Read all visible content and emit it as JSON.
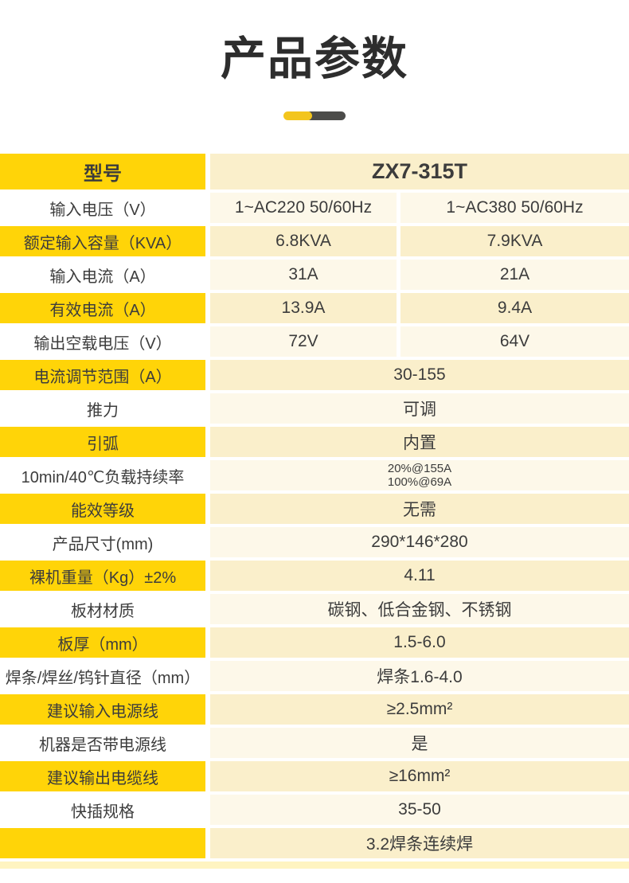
{
  "title": "产品参数",
  "table": {
    "header": {
      "label": "型号",
      "value": "ZX7-315T"
    },
    "rows": [
      {
        "label": "输入电压（V）",
        "highlight": false,
        "values": [
          "1~AC220 50/60Hz",
          "1~AC380 50/60Hz"
        ]
      },
      {
        "label": "额定输入容量（KVA）",
        "highlight": true,
        "values": [
          "6.8KVA",
          "7.9KVA"
        ]
      },
      {
        "label": "输入电流（A）",
        "highlight": false,
        "values": [
          "31A",
          "21A"
        ]
      },
      {
        "label": "有效电流（A）",
        "highlight": true,
        "values": [
          "13.9A",
          "9.4A"
        ]
      },
      {
        "label": "输出空载电压（V）",
        "highlight": false,
        "values": [
          "72V",
          "64V"
        ]
      },
      {
        "label": "电流调节范围（A）",
        "highlight": true,
        "values": [
          "30-155"
        ]
      },
      {
        "label": "推力",
        "highlight": false,
        "values": [
          "可调"
        ]
      },
      {
        "label": "引弧",
        "highlight": true,
        "values": [
          "内置"
        ]
      },
      {
        "label": "10min/40℃负载持续率",
        "highlight": false,
        "values": [
          "20%@155A",
          "100%@69A"
        ],
        "multiline": true
      },
      {
        "label": "能效等级",
        "highlight": true,
        "values": [
          "无需"
        ]
      },
      {
        "label": "产品尺寸(mm)",
        "highlight": false,
        "values": [
          "290*146*280"
        ]
      },
      {
        "label": "裸机重量（Kg）±2%",
        "highlight": true,
        "values": [
          "4.11"
        ]
      },
      {
        "label": "板材材质",
        "highlight": false,
        "values": [
          "碳钢、低合金钢、不锈钢"
        ]
      },
      {
        "label": "板厚（mm）",
        "highlight": true,
        "values": [
          "1.5-6.0"
        ]
      },
      {
        "label": "焊条/焊丝/钨针直径（mm）",
        "highlight": false,
        "values": [
          "焊条1.6-4.0"
        ]
      },
      {
        "label": "建议输入电源线",
        "highlight": true,
        "values": [
          "≥2.5mm²"
        ]
      },
      {
        "label": "机器是否带电源线",
        "highlight": false,
        "values": [
          "是"
        ]
      },
      {
        "label": "建议输出电缆线",
        "highlight": true,
        "values": [
          "≥16mm²"
        ]
      },
      {
        "label": "快插规格",
        "highlight": false,
        "values": [
          "35-50"
        ]
      },
      {
        "label": "",
        "highlight": true,
        "values": [
          "3.2焊条连续焊"
        ]
      }
    ]
  },
  "colors": {
    "row_label_highlight": "#ffd408",
    "value_cell_dark": "#faefcb",
    "value_cell_light": "#fdf8e9",
    "underline_yellow": "#f3c51d",
    "underline_dark": "#4c4c4a",
    "title_text": "#2d2d2d",
    "body_text": "#3c3c3c"
  }
}
